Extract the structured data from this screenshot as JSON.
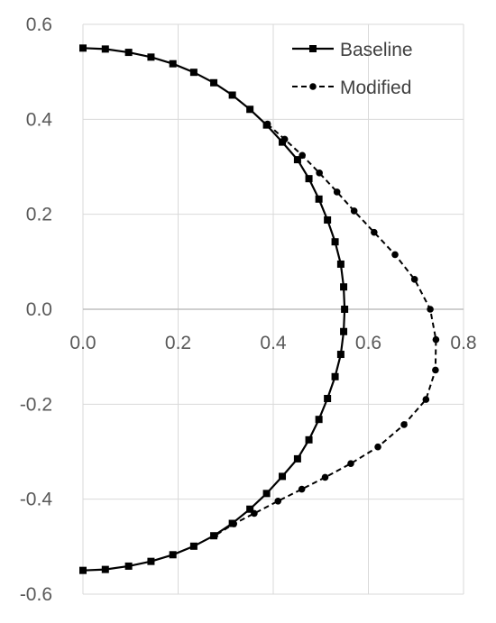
{
  "chart_data": {
    "type": "scatter",
    "title": "",
    "xlabel": "",
    "ylabel": "",
    "xlim": [
      0,
      0.8
    ],
    "ylim": [
      -0.6,
      0.6
    ],
    "xticks": [
      "0.0",
      "0.2",
      "0.4",
      "0.6",
      "0.8"
    ],
    "yticks": [
      "0.6",
      "0.4",
      "0.2",
      "0.0",
      "-0.2",
      "-0.4",
      "-0.6"
    ],
    "grid": true,
    "legend_position": "top-right",
    "series": [
      {
        "name": "Baseline",
        "line": "solid",
        "marker": "square",
        "color": "#000000",
        "points": [
          [
            0.0,
            0.55
          ],
          [
            0.047,
            0.548
          ],
          [
            0.096,
            0.541
          ],
          [
            0.143,
            0.531
          ],
          [
            0.189,
            0.517
          ],
          [
            0.233,
            0.499
          ],
          [
            0.275,
            0.477
          ],
          [
            0.314,
            0.451
          ],
          [
            0.351,
            0.421
          ],
          [
            0.386,
            0.388
          ],
          [
            0.419,
            0.352
          ],
          [
            0.451,
            0.315
          ],
          [
            0.475,
            0.275
          ],
          [
            0.496,
            0.232
          ],
          [
            0.514,
            0.188
          ],
          [
            0.53,
            0.142
          ],
          [
            0.542,
            0.095
          ],
          [
            0.548,
            0.047
          ],
          [
            0.55,
            0.0
          ],
          [
            0.548,
            -0.047
          ],
          [
            0.542,
            -0.095
          ],
          [
            0.53,
            -0.142
          ],
          [
            0.514,
            -0.188
          ],
          [
            0.496,
            -0.232
          ],
          [
            0.475,
            -0.275
          ],
          [
            0.451,
            -0.315
          ],
          [
            0.419,
            -0.352
          ],
          [
            0.386,
            -0.388
          ],
          [
            0.351,
            -0.421
          ],
          [
            0.314,
            -0.451
          ],
          [
            0.275,
            -0.477
          ],
          [
            0.233,
            -0.499
          ],
          [
            0.189,
            -0.517
          ],
          [
            0.143,
            -0.531
          ],
          [
            0.096,
            -0.541
          ],
          [
            0.047,
            -0.548
          ],
          [
            0.0,
            -0.55
          ]
        ]
      },
      {
        "name": "Modified",
        "line": "dashed",
        "marker": "circle",
        "color": "#000000",
        "points": [
          [
            0.388,
            0.39
          ],
          [
            0.424,
            0.358
          ],
          [
            0.461,
            0.324
          ],
          [
            0.497,
            0.287
          ],
          [
            0.534,
            0.247
          ],
          [
            0.57,
            0.207
          ],
          [
            0.612,
            0.162
          ],
          [
            0.656,
            0.115
          ],
          [
            0.697,
            0.063
          ],
          [
            0.73,
            0.0
          ],
          [
            0.742,
            -0.064
          ],
          [
            0.741,
            -0.128
          ],
          [
            0.721,
            -0.19
          ],
          [
            0.675,
            -0.243
          ],
          [
            0.62,
            -0.29
          ],
          [
            0.563,
            -0.325
          ],
          [
            0.509,
            -0.354
          ],
          [
            0.46,
            -0.379
          ],
          [
            0.41,
            -0.404
          ],
          [
            0.36,
            -0.43
          ],
          [
            0.317,
            -0.452
          ],
          [
            0.277,
            -0.477
          ]
        ]
      }
    ]
  }
}
